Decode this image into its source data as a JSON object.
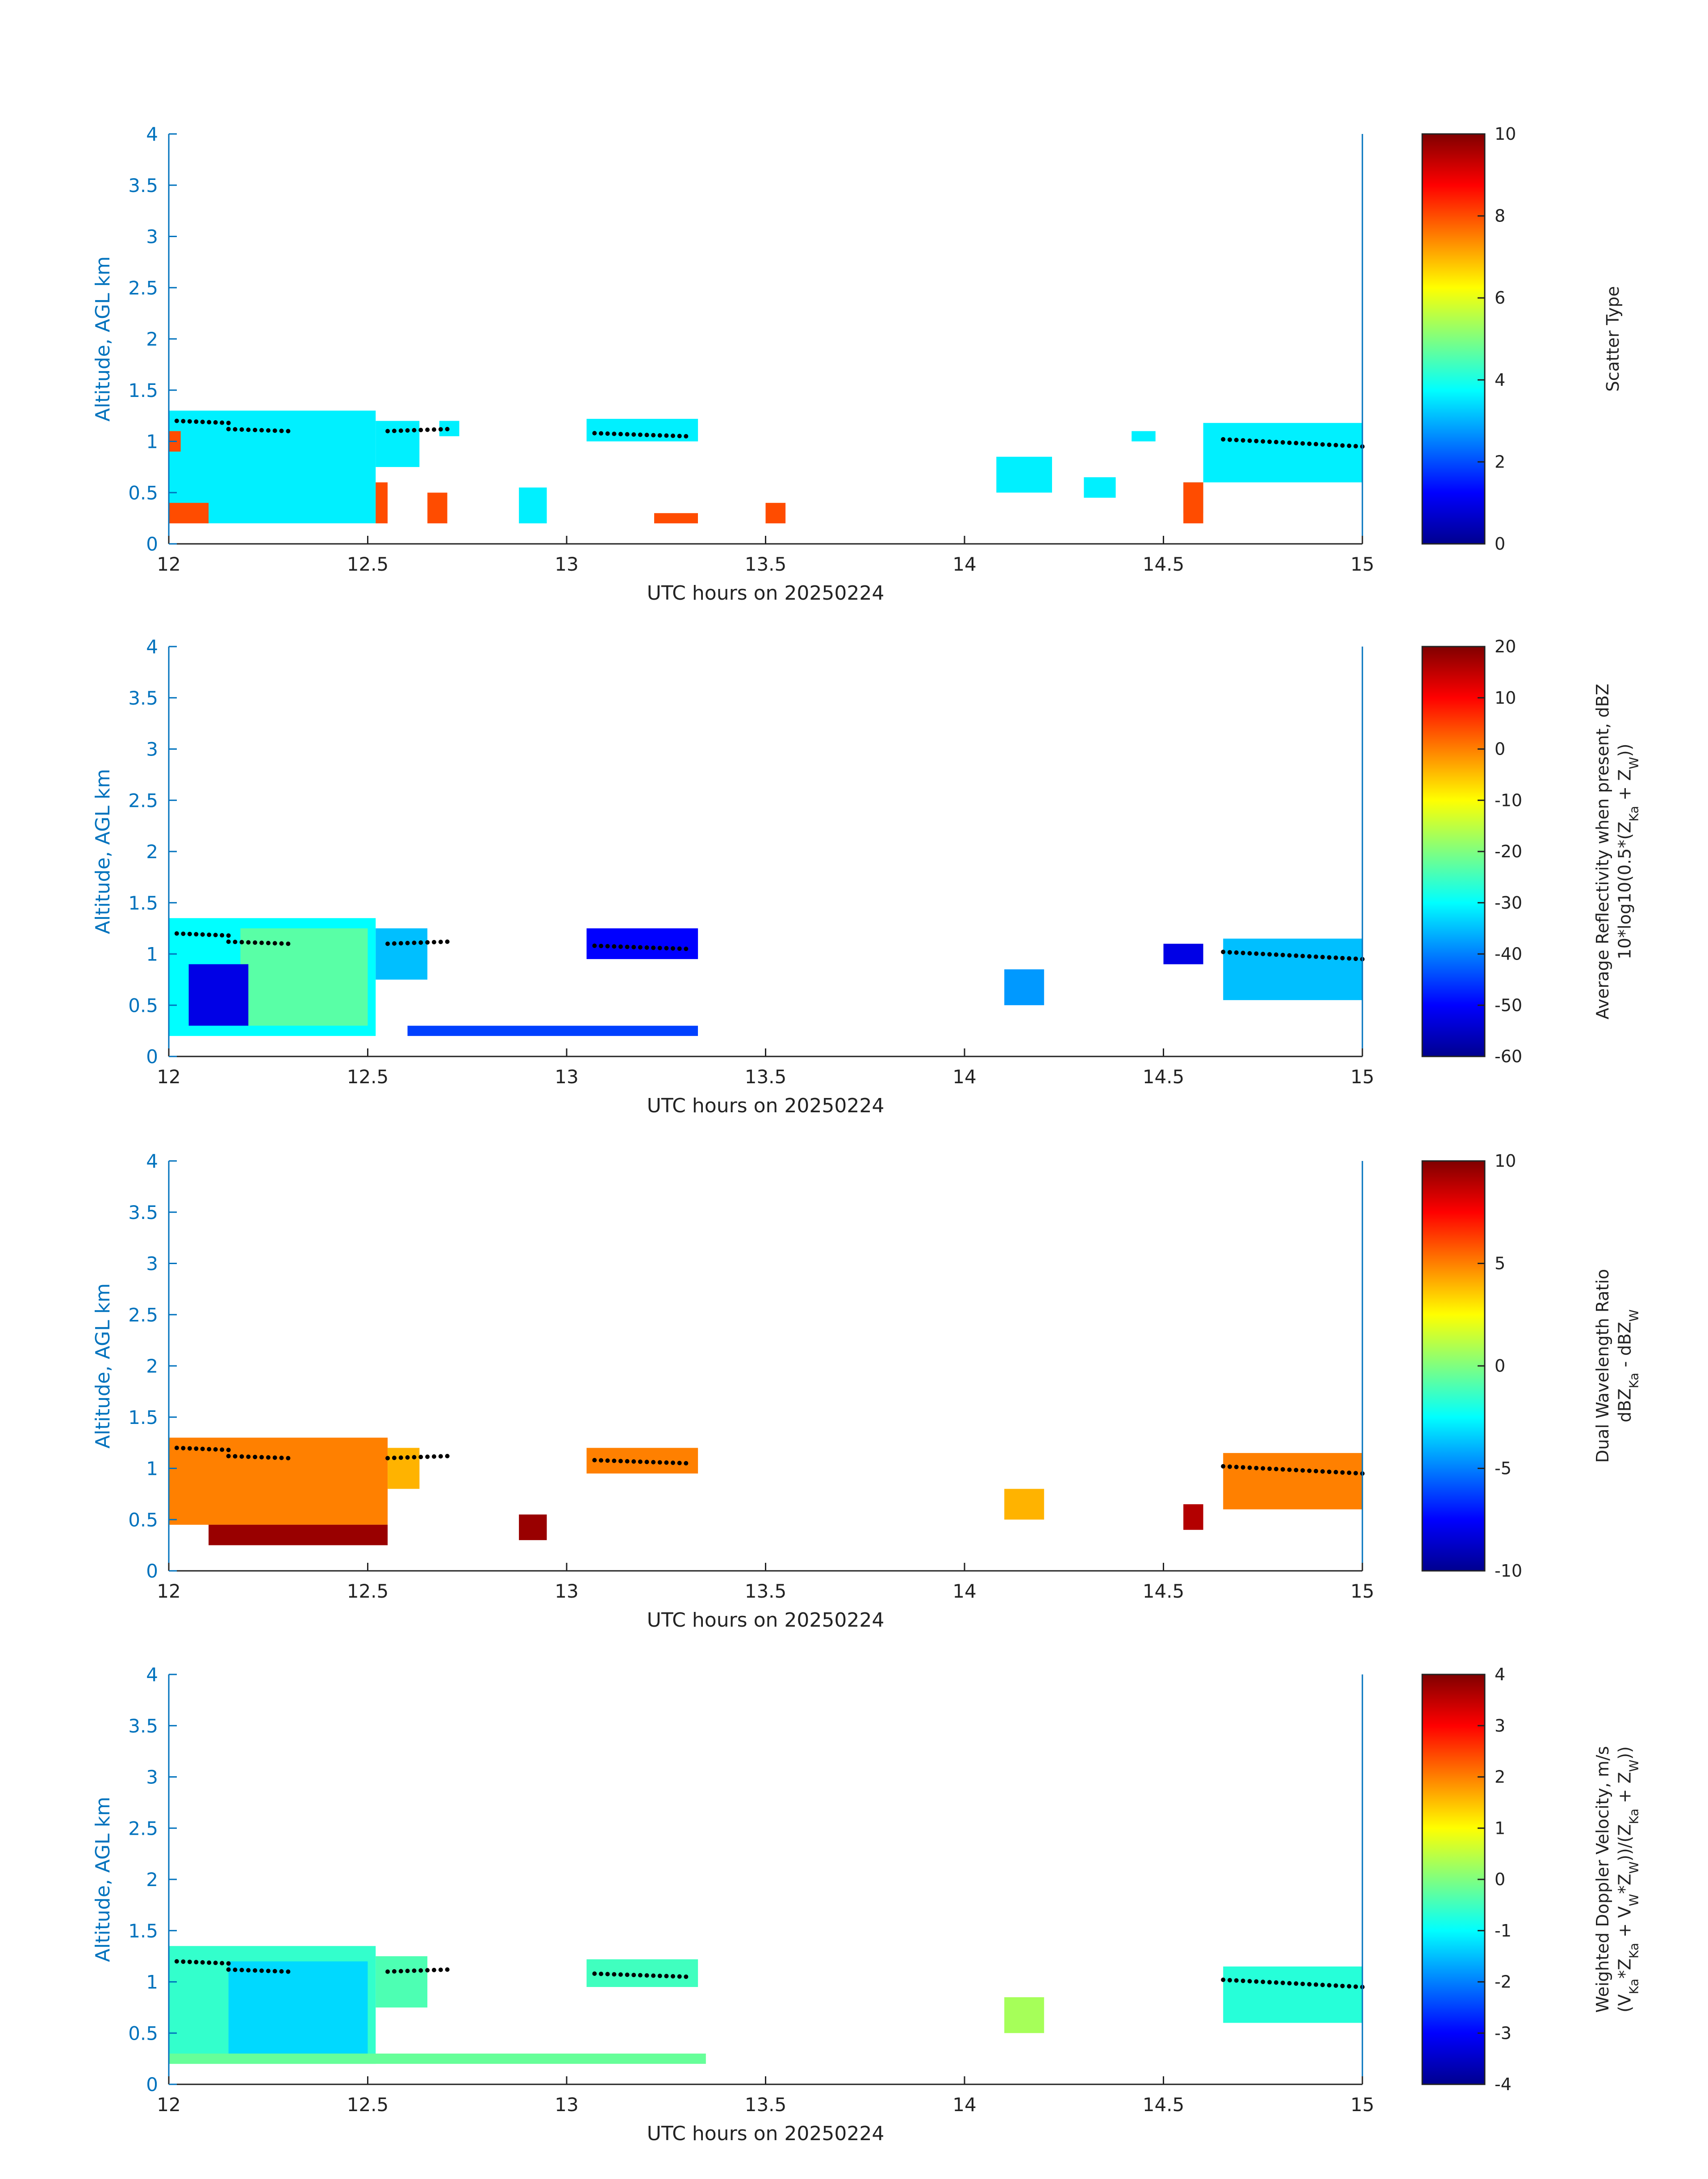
{
  "chart_data": [
    {
      "type": "heatmap",
      "title": "",
      "xlabel": "UTC hours on 20250224",
      "ylabel": "Altitude, AGL km",
      "xlim": [
        12,
        15
      ],
      "ylim": [
        0,
        4
      ],
      "xticks": [
        "12",
        "12.5",
        "13",
        "13.5",
        "14",
        "14.5",
        "15"
      ],
      "yticks": [
        "0",
        "0.5",
        "1",
        "1.5",
        "2",
        "2.5",
        "3",
        "3.5",
        "4"
      ],
      "colorbar": {
        "label_lines": [
          "Scatter Type"
        ],
        "range": [
          0,
          10
        ],
        "ticks": [
          "0",
          "2",
          "4",
          "6",
          "8",
          "10"
        ]
      },
      "regions": [
        {
          "x": [
            12.0,
            12.52
          ],
          "y": [
            0.2,
            1.3
          ],
          "value": 3.6
        },
        {
          "x": [
            12.52,
            12.63
          ],
          "y": [
            0.75,
            1.2
          ],
          "value": 3.6
        },
        {
          "x": [
            12.68,
            12.73
          ],
          "y": [
            1.05,
            1.2
          ],
          "value": 3.6
        },
        {
          "x": [
            12.88,
            12.95
          ],
          "y": [
            0.2,
            0.55
          ],
          "value": 3.6
        },
        {
          "x": [
            13.05,
            13.33
          ],
          "y": [
            1.0,
            1.22
          ],
          "value": 3.6
        },
        {
          "x": [
            14.08,
            14.22
          ],
          "y": [
            0.5,
            0.85
          ],
          "value": 3.6
        },
        {
          "x": [
            14.3,
            14.38
          ],
          "y": [
            0.45,
            0.65
          ],
          "value": 3.6
        },
        {
          "x": [
            14.42,
            14.48
          ],
          "y": [
            1.0,
            1.1
          ],
          "value": 3.6
        },
        {
          "x": [
            14.55,
            14.6
          ],
          "y": [
            0.3,
            0.6
          ],
          "value": 3.6
        },
        {
          "x": [
            14.6,
            15.0
          ],
          "y": [
            0.6,
            1.18
          ],
          "value": 3.6
        },
        {
          "x": [
            12.0,
            12.1
          ],
          "y": [
            0.2,
            0.4
          ],
          "value": 8.0
        },
        {
          "x": [
            12.0,
            12.03
          ],
          "y": [
            0.9,
            1.1
          ],
          "value": 8.0
        },
        {
          "x": [
            12.52,
            12.55
          ],
          "y": [
            0.2,
            0.6
          ],
          "value": 8.0
        },
        {
          "x": [
            12.65,
            12.7
          ],
          "y": [
            0.2,
            0.5
          ],
          "value": 8.0
        },
        {
          "x": [
            13.22,
            13.33
          ],
          "y": [
            0.2,
            0.3
          ],
          "value": 8.0
        },
        {
          "x": [
            13.5,
            13.55
          ],
          "y": [
            0.2,
            0.4
          ],
          "value": 8.0
        },
        {
          "x": [
            14.55,
            14.6
          ],
          "y": [
            0.2,
            0.6
          ],
          "value": 8.0
        }
      ],
      "heights": [
        {
          "x": [
            12.02,
            12.15
          ],
          "y": [
            1.2,
            1.18
          ]
        },
        {
          "x": [
            12.15,
            12.3
          ],
          "y": [
            1.12,
            1.1
          ]
        },
        {
          "x": [
            12.55,
            12.7
          ],
          "y": [
            1.1,
            1.12
          ]
        },
        {
          "x": [
            13.07,
            13.3
          ],
          "y": [
            1.08,
            1.05
          ]
        },
        {
          "x": [
            14.65,
            15.0
          ],
          "y": [
            1.02,
            0.95
          ]
        }
      ]
    },
    {
      "type": "heatmap",
      "title": "",
      "xlabel": "UTC hours on 20250224",
      "ylabel": "Altitude, AGL km",
      "xlim": [
        12,
        15
      ],
      "ylim": [
        0,
        4
      ],
      "xticks": [
        "12",
        "12.5",
        "13",
        "13.5",
        "14",
        "14.5",
        "15"
      ],
      "yticks": [
        "0",
        "0.5",
        "1",
        "1.5",
        "2",
        "2.5",
        "3",
        "3.5",
        "4"
      ],
      "colorbar": {
        "label_lines": [
          "Average Reflectivity when present, dBZ",
          "10*log10(0.5*(Z",
          "Ka",
          " + Z",
          "W",
          "))"
        ],
        "range": [
          -60,
          20
        ],
        "ticks": [
          "-60",
          "-50",
          "-40",
          "-30",
          "-20",
          "-10",
          "0",
          "10",
          "20"
        ]
      },
      "regions": [
        {
          "x": [
            12.0,
            12.52
          ],
          "y": [
            0.2,
            1.35
          ],
          "value": -30
        },
        {
          "x": [
            12.18,
            12.5
          ],
          "y": [
            0.3,
            1.25
          ],
          "value": -23
        },
        {
          "x": [
            12.05,
            12.2
          ],
          "y": [
            0.3,
            0.9
          ],
          "value": -52
        },
        {
          "x": [
            12.52,
            12.65
          ],
          "y": [
            0.75,
            1.25
          ],
          "value": -35
        },
        {
          "x": [
            13.05,
            13.33
          ],
          "y": [
            0.95,
            1.25
          ],
          "value": -50
        },
        {
          "x": [
            14.1,
            14.2
          ],
          "y": [
            0.5,
            0.85
          ],
          "value": -38
        },
        {
          "x": [
            14.5,
            14.6
          ],
          "y": [
            0.9,
            1.1
          ],
          "value": -52
        },
        {
          "x": [
            14.65,
            15.0
          ],
          "y": [
            0.55,
            1.15
          ],
          "value": -35
        },
        {
          "x": [
            12.6,
            13.33
          ],
          "y": [
            0.2,
            0.3
          ],
          "value": -45
        }
      ],
      "heights": [
        {
          "x": [
            12.02,
            12.15
          ],
          "y": [
            1.2,
            1.18
          ]
        },
        {
          "x": [
            12.15,
            12.3
          ],
          "y": [
            1.12,
            1.1
          ]
        },
        {
          "x": [
            12.55,
            12.7
          ],
          "y": [
            1.1,
            1.12
          ]
        },
        {
          "x": [
            13.07,
            13.3
          ],
          "y": [
            1.08,
            1.05
          ]
        },
        {
          "x": [
            14.65,
            15.0
          ],
          "y": [
            1.02,
            0.95
          ]
        }
      ]
    },
    {
      "type": "heatmap",
      "title": "",
      "xlabel": "UTC hours on 20250224",
      "ylabel": "Altitude, AGL km",
      "xlim": [
        12,
        15
      ],
      "ylim": [
        0,
        4
      ],
      "xticks": [
        "12",
        "12.5",
        "13",
        "13.5",
        "14",
        "14.5",
        "15"
      ],
      "yticks": [
        "0",
        "0.5",
        "1",
        "1.5",
        "2",
        "2.5",
        "3",
        "3.5",
        "4"
      ],
      "colorbar": {
        "label_lines": [
          "Dual Wavelength Ratio",
          "dBZ",
          "Ka",
          " - dBZ",
          "W"
        ],
        "range": [
          -10,
          10
        ],
        "ticks": [
          "-10",
          "-5",
          "0",
          "5",
          "10"
        ]
      },
      "regions": [
        {
          "x": [
            12.0,
            12.55
          ],
          "y": [
            0.45,
            1.3
          ],
          "value": 5
        },
        {
          "x": [
            12.1,
            12.55
          ],
          "y": [
            0.25,
            0.45
          ],
          "value": 9.5
        },
        {
          "x": [
            12.55,
            12.63
          ],
          "y": [
            0.8,
            1.2
          ],
          "value": 4
        },
        {
          "x": [
            12.88,
            12.95
          ],
          "y": [
            0.3,
            0.55
          ],
          "value": 9.5
        },
        {
          "x": [
            13.05,
            13.33
          ],
          "y": [
            0.95,
            1.2
          ],
          "value": 5
        },
        {
          "x": [
            14.1,
            14.2
          ],
          "y": [
            0.5,
            0.8
          ],
          "value": 4
        },
        {
          "x": [
            14.65,
            15.0
          ],
          "y": [
            0.6,
            1.15
          ],
          "value": 5
        },
        {
          "x": [
            14.55,
            14.6
          ],
          "y": [
            0.4,
            0.65
          ],
          "value": 9
        }
      ],
      "heights": [
        {
          "x": [
            12.02,
            12.15
          ],
          "y": [
            1.2,
            1.18
          ]
        },
        {
          "x": [
            12.15,
            12.3
          ],
          "y": [
            1.12,
            1.1
          ]
        },
        {
          "x": [
            12.55,
            12.7
          ],
          "y": [
            1.1,
            1.12
          ]
        },
        {
          "x": [
            13.07,
            13.3
          ],
          "y": [
            1.08,
            1.05
          ]
        },
        {
          "x": [
            14.65,
            15.0
          ],
          "y": [
            1.02,
            0.95
          ]
        }
      ]
    },
    {
      "type": "heatmap",
      "title": "",
      "xlabel": "UTC hours on 20250224",
      "ylabel": "Altitude, AGL km",
      "xlim": [
        12,
        15
      ],
      "ylim": [
        0,
        4
      ],
      "xticks": [
        "12",
        "12.5",
        "13",
        "13.5",
        "14",
        "14.5",
        "15"
      ],
      "yticks": [
        "0",
        "0.5",
        "1",
        "1.5",
        "2",
        "2.5",
        "3",
        "3.5",
        "4"
      ],
      "colorbar": {
        "label_lines": [
          "Weighted Doppler Velocity, m/s",
          "(V",
          "Ka",
          "*Z",
          "Ka",
          " + V",
          "W",
          "*Z",
          "W",
          "))/(Z",
          "Ka",
          " + Z",
          "W",
          "))"
        ],
        "range": [
          -4,
          4
        ],
        "ticks": [
          "-4",
          "-3",
          "-2",
          "-1",
          "0",
          "1",
          "2",
          "3",
          "4"
        ]
      },
      "regions": [
        {
          "x": [
            12.0,
            12.52
          ],
          "y": [
            0.2,
            1.35
          ],
          "value": -0.6
        },
        {
          "x": [
            12.15,
            12.5
          ],
          "y": [
            0.3,
            1.2
          ],
          "value": -1.3
        },
        {
          "x": [
            12.52,
            12.65
          ],
          "y": [
            0.75,
            1.25
          ],
          "value": -0.4
        },
        {
          "x": [
            13.05,
            13.33
          ],
          "y": [
            0.95,
            1.22
          ],
          "value": -0.5
        },
        {
          "x": [
            14.1,
            14.2
          ],
          "y": [
            0.5,
            0.85
          ],
          "value": 0.3
        },
        {
          "x": [
            14.65,
            15.0
          ],
          "y": [
            0.6,
            1.15
          ],
          "value": -0.7
        },
        {
          "x": [
            12.0,
            13.35
          ],
          "y": [
            0.2,
            0.3
          ],
          "value": -0.2
        }
      ],
      "heights": [
        {
          "x": [
            12.02,
            12.15
          ],
          "y": [
            1.2,
            1.18
          ]
        },
        {
          "x": [
            12.15,
            12.3
          ],
          "y": [
            1.12,
            1.1
          ]
        },
        {
          "x": [
            12.55,
            12.7
          ],
          "y": [
            1.1,
            1.12
          ]
        },
        {
          "x": [
            13.07,
            13.3
          ],
          "y": [
            1.08,
            1.05
          ]
        },
        {
          "x": [
            14.65,
            15.0
          ],
          "y": [
            1.02,
            0.95
          ]
        }
      ]
    }
  ]
}
